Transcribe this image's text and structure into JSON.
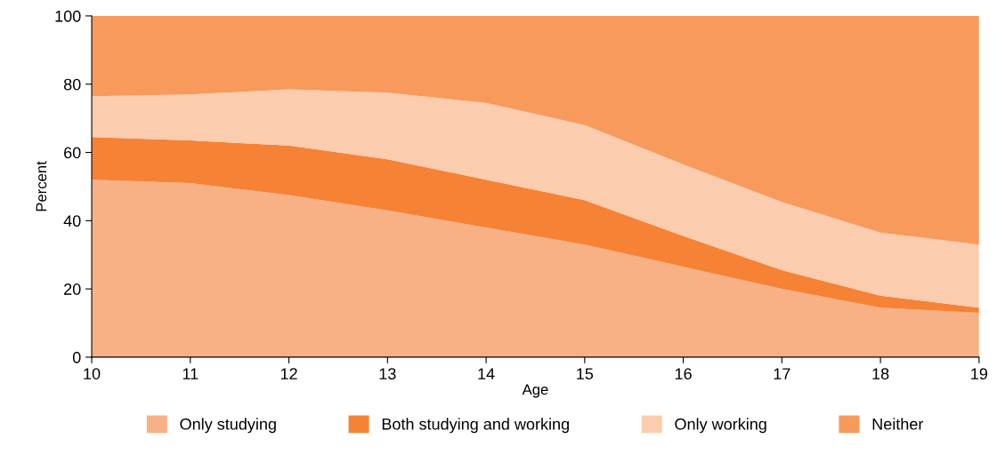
{
  "chart_data": {
    "type": "area",
    "stacked": true,
    "xlabel": "Age",
    "ylabel": "Percent",
    "x": [
      10,
      11,
      12,
      13,
      14,
      15,
      16,
      17,
      18,
      19
    ],
    "xlim": [
      10,
      19
    ],
    "xticks": [
      10,
      11,
      12,
      13,
      14,
      15,
      16,
      17,
      18,
      19
    ],
    "ylim": [
      0,
      100
    ],
    "yticks": [
      0,
      20,
      40,
      60,
      80,
      100
    ],
    "grid": false,
    "legend": "bottom",
    "series": [
      {
        "name": "Only studying",
        "color": "#f8b185",
        "values": [
          52,
          51,
          47.5,
          43,
          38,
          33,
          26.5,
          20,
          14.5,
          13
        ]
      },
      {
        "name": "Both studying and working",
        "color": "#f58235",
        "values": [
          12.5,
          12.5,
          14.5,
          15,
          14,
          13,
          9,
          5.5,
          3.5,
          1.5
        ]
      },
      {
        "name": "Only working",
        "color": "#fbccad",
        "values": [
          12,
          13.5,
          16.5,
          19.5,
          22.5,
          22,
          21,
          20,
          18.5,
          18.5
        ]
      },
      {
        "name": "Neither",
        "color": "#f79a5c",
        "values": [
          23.5,
          23,
          21.5,
          22.5,
          25.5,
          32,
          43.5,
          54.5,
          63.5,
          67
        ]
      }
    ]
  }
}
